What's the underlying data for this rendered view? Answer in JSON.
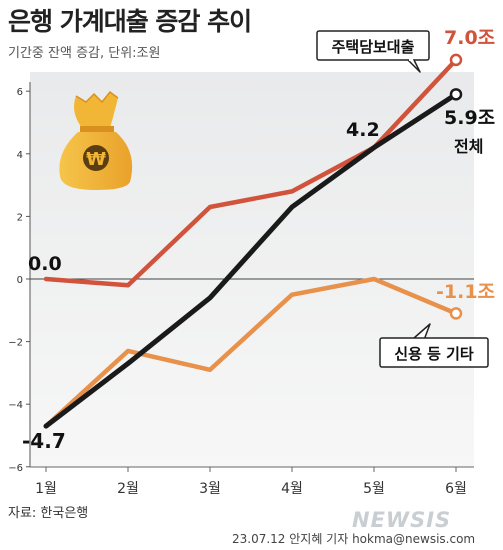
{
  "header": {
    "title": "은행 가계대출 증감 추이",
    "subtitle": "기간중 잔액 증감, 단위:조원"
  },
  "footer": {
    "source": "자료: 한국은행",
    "credit": "23.07.12 안지혜 기자 hokma@newsis.com",
    "watermark": "NEWSIS"
  },
  "colors": {
    "total": "#1a1a1a",
    "mortgage": "#d1533b",
    "credit": "#e8914a",
    "money_bag": "#f2b636"
  },
  "icons": {
    "money_bag": "money-bag-icon"
  },
  "chart_data": {
    "type": "line",
    "title": "은행 가계대출 증감 추이",
    "subtitle": "기간중 잔액 증감, 단위:조원",
    "categories": [
      "1월",
      "2월",
      "3월",
      "4월",
      "5월",
      "6월"
    ],
    "ylim": [
      -6,
      6
    ],
    "yticks": [
      "6",
      "4",
      "2",
      "0",
      "-2",
      "-4",
      "-6"
    ],
    "grid": false,
    "series": [
      {
        "name": "주택담보대출",
        "values": [
          0.0,
          -0.2,
          2.3,
          2.8,
          4.2,
          7.0
        ]
      },
      {
        "name": "전체",
        "values": [
          -4.7,
          -2.7,
          -0.6,
          2.3,
          4.2,
          5.9
        ]
      },
      {
        "name": "신용 등 기타",
        "values": [
          -4.7,
          -2.3,
          -2.9,
          -0.5,
          0.0,
          -1.1
        ]
      }
    ],
    "labels": {
      "start": "0.0",
      "total_start": "-4.7",
      "mid": "4.2",
      "mortgage_end": "7.0조",
      "total_end": "5.9조",
      "credit_end": "-1.1조"
    }
  }
}
